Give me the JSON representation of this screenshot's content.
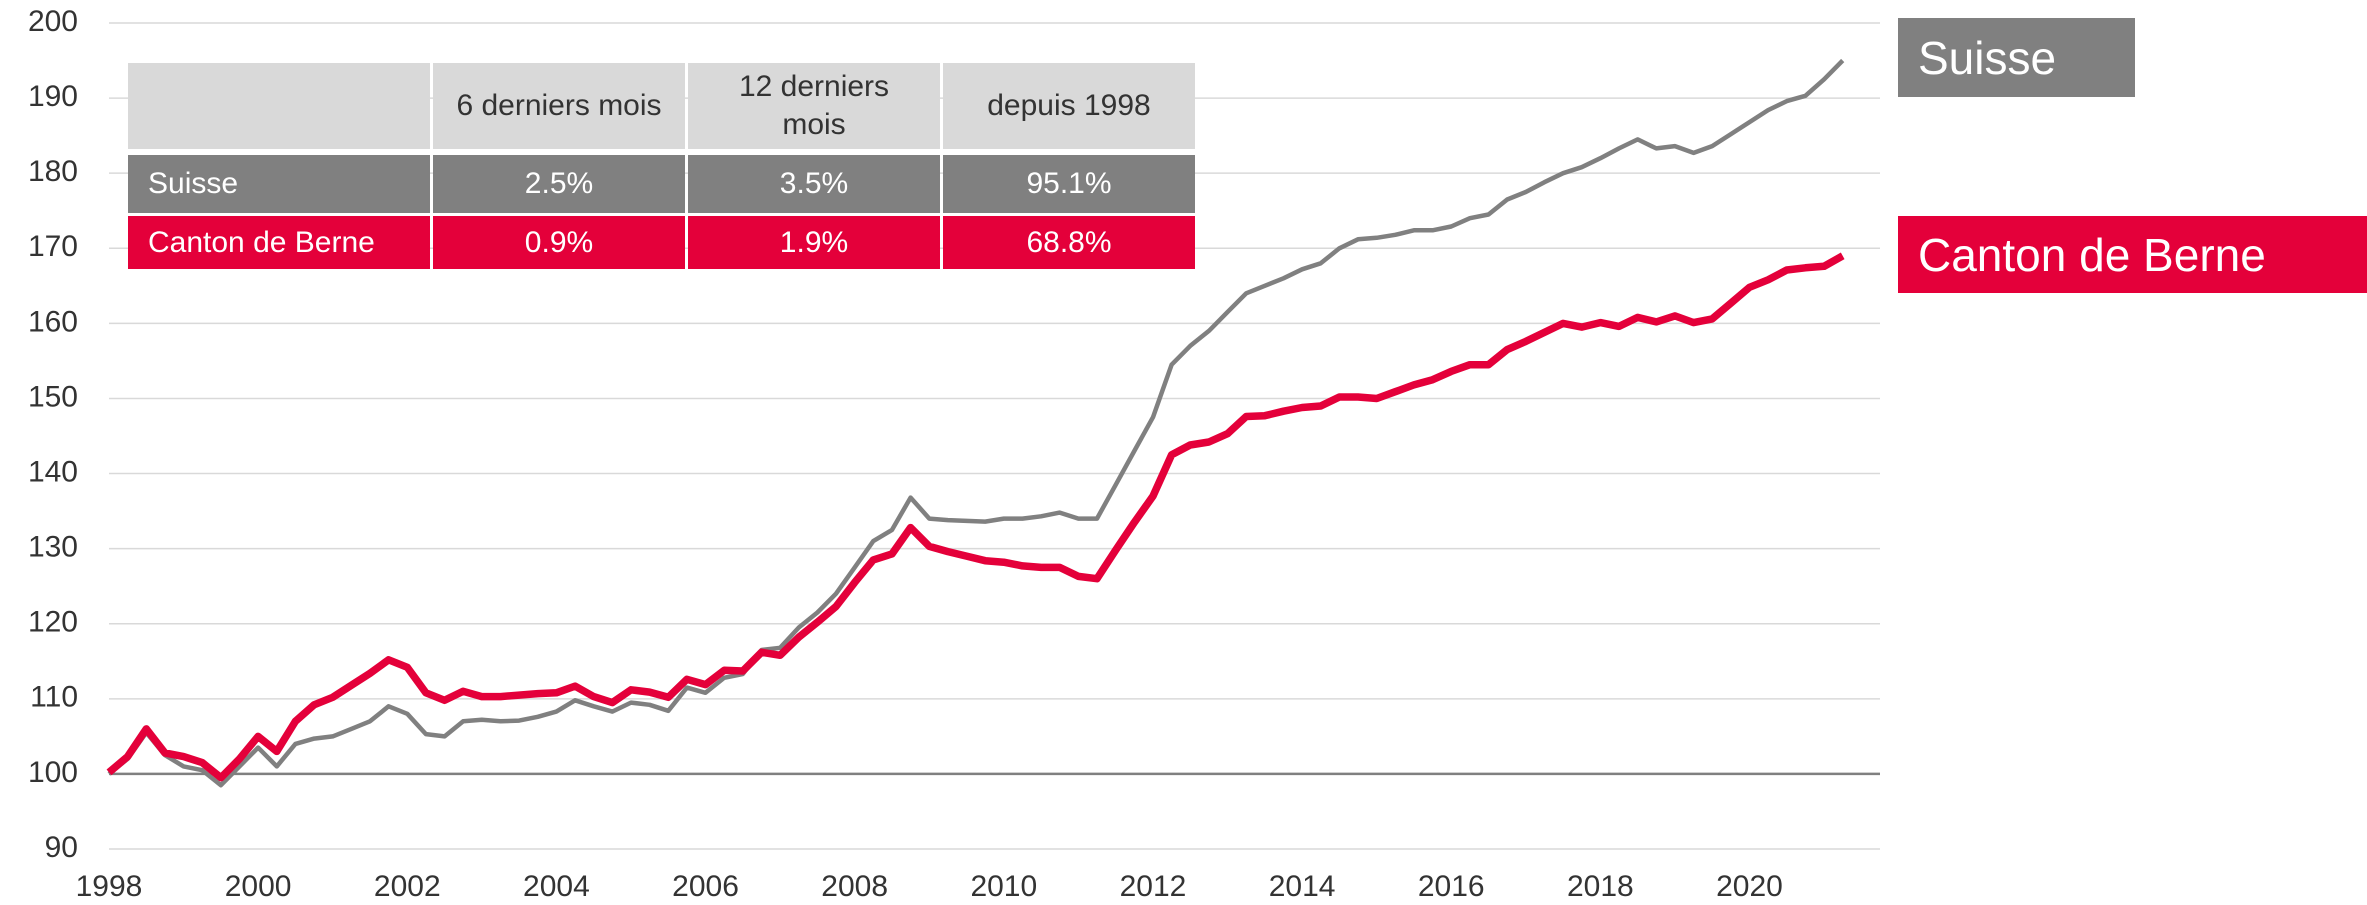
{
  "chart_data": {
    "type": "line",
    "x": [
      1998,
      1998.25,
      1998.5,
      1998.75,
      1999,
      1999.25,
      1999.5,
      1999.75,
      2000,
      2000.25,
      2000.5,
      2000.75,
      2001,
      2001.25,
      2001.5,
      2001.75,
      2002,
      2002.25,
      2002.5,
      2002.75,
      2003,
      2003.25,
      2003.5,
      2003.75,
      2004,
      2004.25,
      2004.5,
      2004.75,
      2005,
      2005.25,
      2005.5,
      2005.75,
      2006,
      2006.25,
      2006.5,
      2006.75,
      2007,
      2007.25,
      2007.5,
      2007.75,
      2008,
      2008.25,
      2008.5,
      2008.75,
      2009,
      2009.25,
      2009.5,
      2009.75,
      2010,
      2010.25,
      2010.5,
      2010.75,
      2011,
      2011.25,
      2011.5,
      2011.75,
      2012,
      2012.25,
      2012.5,
      2012.75,
      2013,
      2013.25,
      2013.5,
      2013.75,
      2014,
      2014.25,
      2014.5,
      2014.75,
      2015,
      2015.25,
      2015.5,
      2015.75,
      2016,
      2016.25,
      2016.5,
      2016.75,
      2017,
      2017.25,
      2017.5,
      2017.75,
      2018,
      2018.25,
      2018.5,
      2018.75,
      2019,
      2019.25,
      2019.5,
      2019.75,
      2020,
      2020.25,
      2020.5,
      2020.75,
      2021,
      2021.25
    ],
    "series": [
      {
        "name": "Suisse",
        "color": "#808080",
        "values": [
          100,
          102,
          105.5,
          102.5,
          101,
          100.5,
          98.5,
          101,
          103.5,
          101,
          104,
          104.7,
          105,
          106,
          107,
          109,
          108,
          105.3,
          105,
          107,
          107.2,
          107,
          107.1,
          107.6,
          108.3,
          109.8,
          109,
          108.3,
          109.5,
          109.2,
          108.4,
          111.5,
          110.8,
          112.8,
          113.3,
          116.5,
          116.8,
          119.5,
          121.5,
          124,
          127.5,
          131,
          132.5,
          136.8,
          134,
          133.8,
          133.7,
          133.6,
          134,
          134,
          134.3,
          134.8,
          134,
          134,
          138.5,
          143,
          147.5,
          154.5,
          157,
          159,
          161.5,
          164,
          165,
          166,
          167.2,
          168,
          170,
          171.2,
          171.4,
          171.8,
          172.4,
          172.4,
          172.9,
          174,
          174.5,
          176.5,
          177.5,
          178.8,
          180,
          180.8,
          182,
          183.3,
          184.5,
          183.3,
          183.6,
          182.7,
          183.6,
          185.2,
          186.8,
          188.4,
          189.6,
          190.3,
          192.5,
          195
        ]
      },
      {
        "name": "Canton de Berne",
        "color": "#e4003a",
        "values": [
          100.2,
          102.3,
          106,
          102.8,
          102.3,
          101.5,
          99.5,
          102,
          105,
          103,
          107,
          109.2,
          110.2,
          111.8,
          113.4,
          115.2,
          114.2,
          110.8,
          109.8,
          111,
          110.3,
          110.3,
          110.5,
          110.7,
          110.8,
          111.7,
          110.3,
          109.5,
          111.2,
          110.9,
          110.2,
          112.6,
          111.9,
          113.8,
          113.7,
          116.2,
          115.8,
          118.2,
          120.2,
          122.3,
          125.5,
          128.5,
          129.3,
          132.8,
          130.3,
          129.6,
          129,
          128.4,
          128.2,
          127.7,
          127.5,
          127.5,
          126.3,
          126,
          129.8,
          133.5,
          137,
          142.5,
          143.8,
          144.2,
          145.3,
          147.6,
          147.7,
          148.3,
          148.8,
          149,
          150.2,
          150.2,
          150,
          150.9,
          151.8,
          152.5,
          153.6,
          154.5,
          154.5,
          156.5,
          157.6,
          158.8,
          160,
          159.5,
          160.1,
          159.6,
          160.8,
          160.2,
          161,
          160.1,
          160.6,
          162.7,
          164.8,
          165.8,
          167.1,
          167.4,
          167.6,
          169
        ]
      }
    ],
    "xlim": [
      1998,
      2021.75
    ],
    "xticks": [
      1998,
      2000,
      2002,
      2004,
      2006,
      2008,
      2010,
      2012,
      2014,
      2016,
      2018,
      2020
    ],
    "ylim": [
      90,
      200
    ],
    "yticks": [
      90,
      100,
      110,
      120,
      130,
      140,
      150,
      160,
      170,
      180,
      190,
      200
    ],
    "grid": true,
    "legend": "right",
    "table": {
      "columns": [
        "6 derniers mois",
        "12 derniers mois",
        "depuis 1998"
      ],
      "rows": [
        {
          "label": "Suisse",
          "values": [
            "2.5%",
            "3.5%",
            "95.1%"
          ]
        },
        {
          "label": "Canton de Berne",
          "values": [
            "0.9%",
            "1.9%",
            "68.8%"
          ]
        }
      ]
    }
  }
}
